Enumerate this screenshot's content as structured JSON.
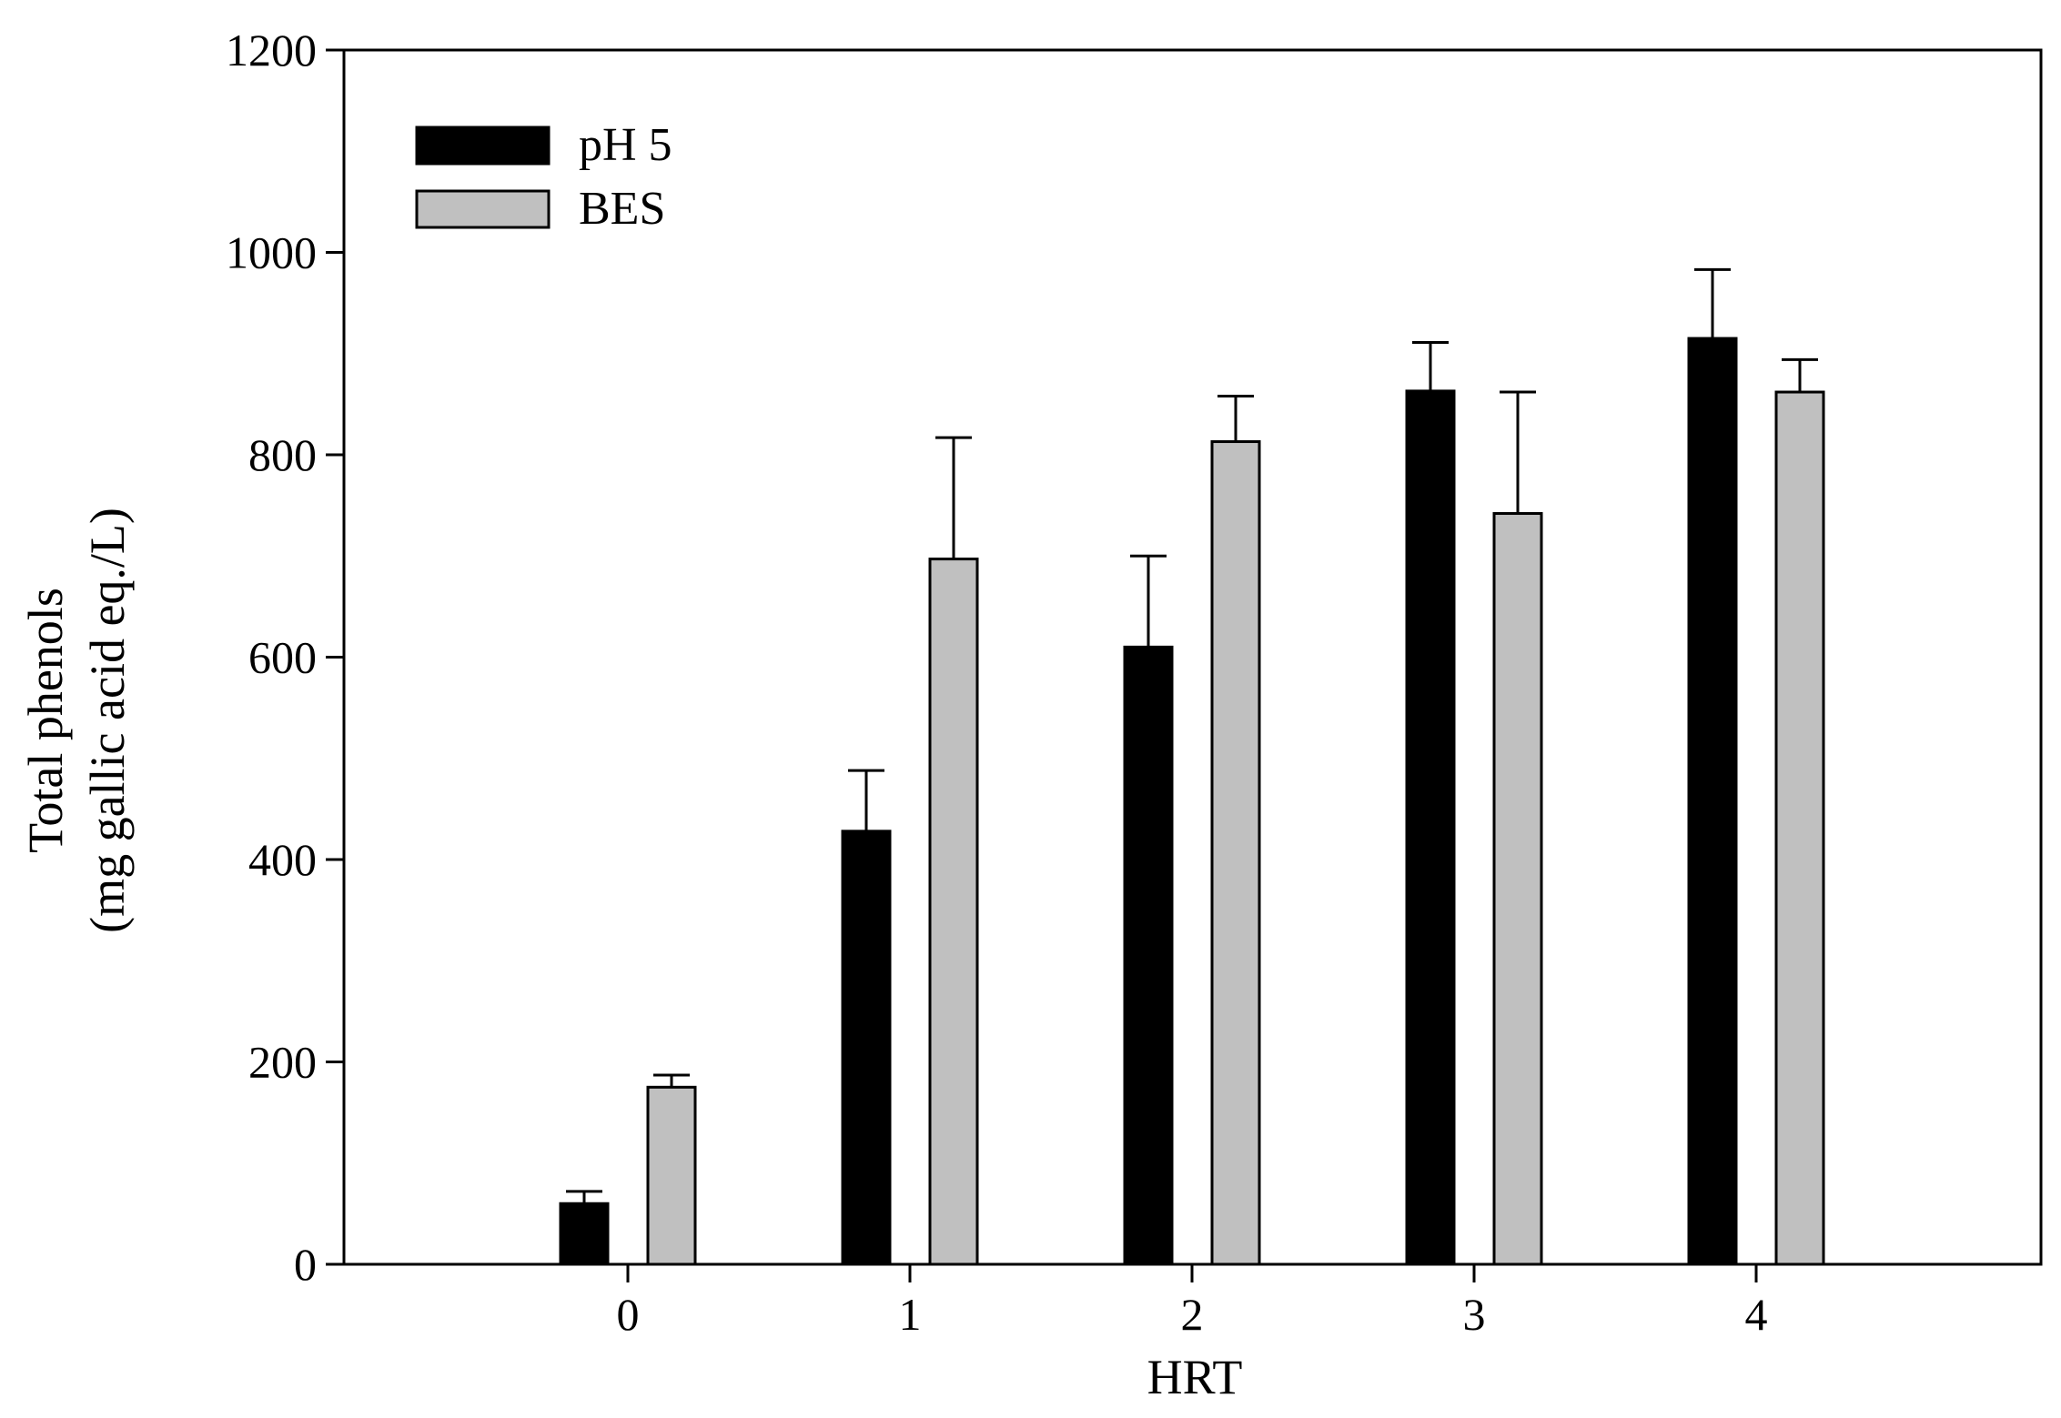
{
  "chart_data": {
    "type": "bar",
    "title": "",
    "xlabel": "HRT",
    "ylabel_line1": "Total phenols",
    "ylabel_line2": "(mg gallic acid eq./L)",
    "categories": [
      "0",
      "1",
      "2",
      "3",
      "4"
    ],
    "ylim": [
      0,
      1200
    ],
    "yticks": [
      "0",
      "200",
      "400",
      "600",
      "800",
      "1000",
      "1200"
    ],
    "grid": false,
    "legend_position": "top-left",
    "series": [
      {
        "name": "pH 5",
        "color": "#000000",
        "values": [
          60,
          428,
          610,
          863,
          915
        ],
        "errors": [
          12,
          60,
          90,
          48,
          68
        ]
      },
      {
        "name": "BES",
        "color": "#c0c0c0",
        "values": [
          175,
          697,
          813,
          742,
          862
        ],
        "errors": [
          12,
          120,
          45,
          120,
          32
        ]
      }
    ]
  }
}
